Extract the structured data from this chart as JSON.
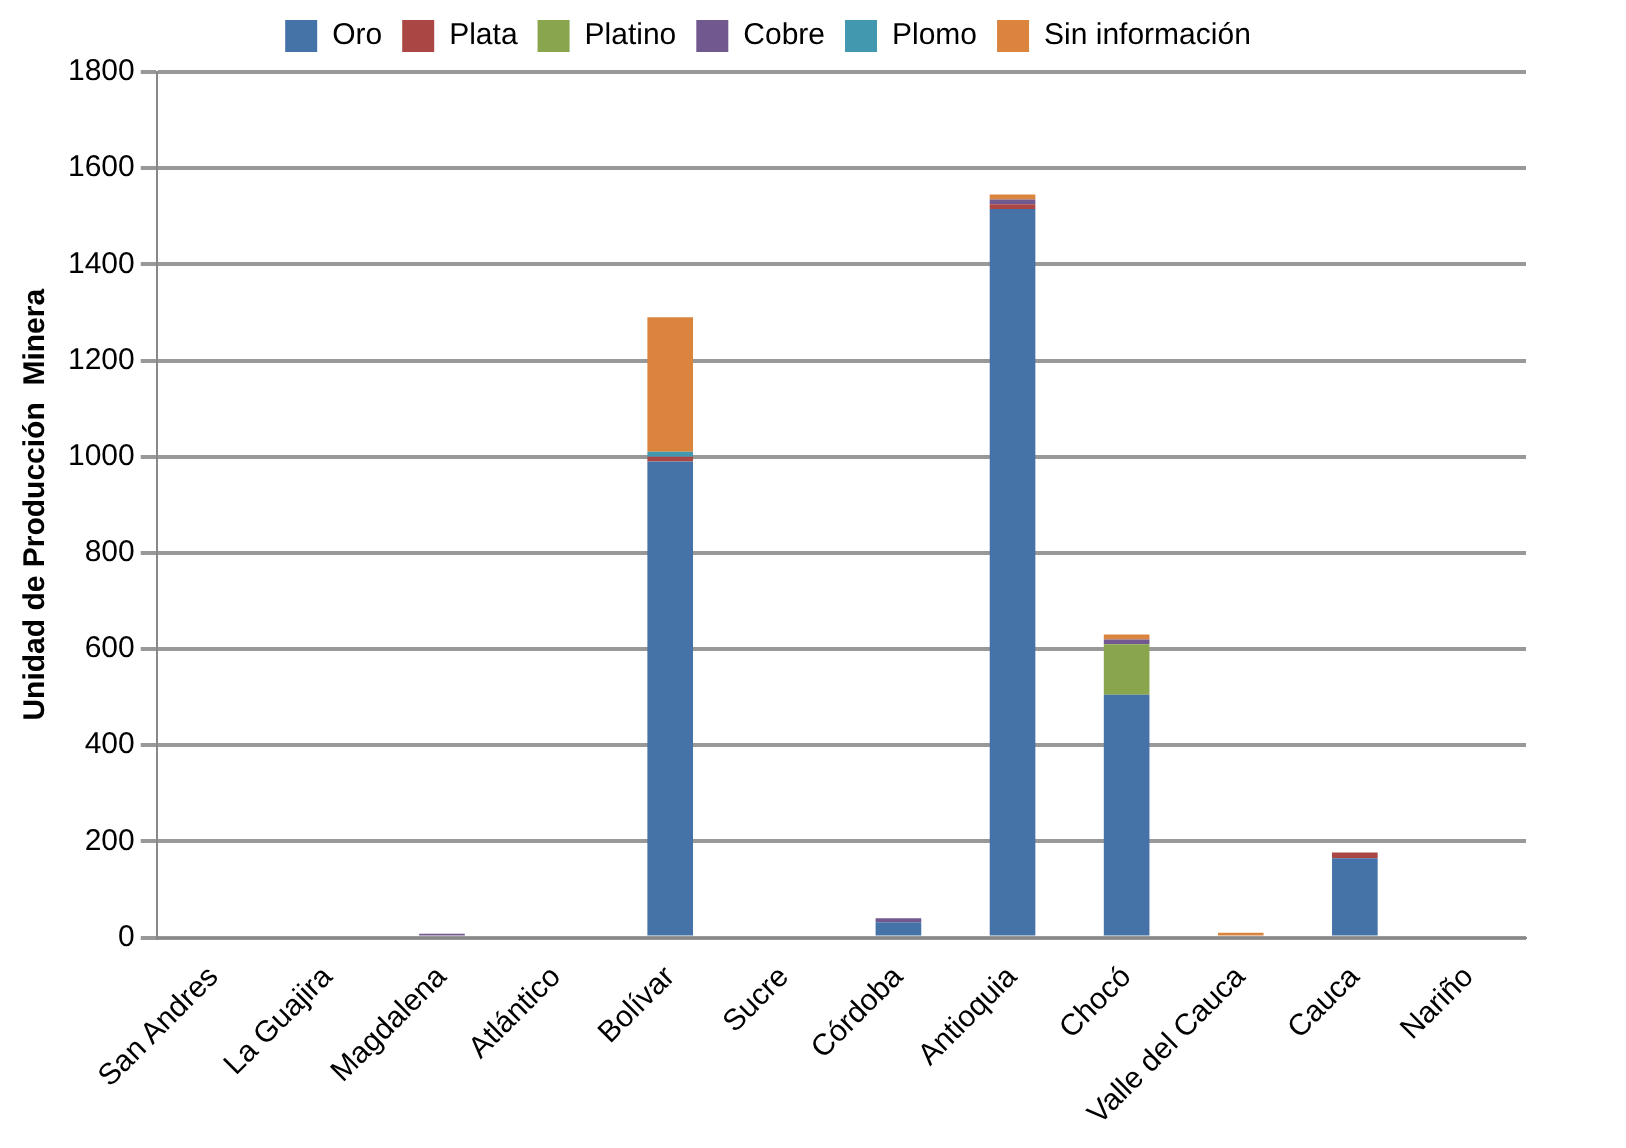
{
  "chart_data": {
    "type": "bar",
    "stacked": true,
    "ylabel": "Unidad de Producción  Minera",
    "categories": [
      "San Andres",
      "La Guajira",
      "Magdalena",
      "Atlántico",
      "Bolívar",
      "Sucre",
      "Córdoba",
      "Antioquia",
      "Chocó",
      "Valle del Cauca",
      "Cauca",
      "Nariño"
    ],
    "series": [
      {
        "name": "Oro",
        "color": "#4572a7",
        "values": [
          0,
          0,
          0,
          0,
          990,
          0,
          32,
          1515,
          505,
          0,
          165,
          0
        ]
      },
      {
        "name": "Plata",
        "color": "#aa4643",
        "values": [
          0,
          0,
          0,
          0,
          10,
          0,
          0,
          10,
          0,
          0,
          12,
          0
        ]
      },
      {
        "name": "Platino",
        "color": "#89a54e",
        "values": [
          0,
          0,
          0,
          0,
          0,
          0,
          0,
          0,
          105,
          0,
          0,
          0
        ]
      },
      {
        "name": "Cobre",
        "color": "#71588f",
        "values": [
          0,
          0,
          8,
          0,
          0,
          0,
          8,
          10,
          10,
          0,
          0,
          0
        ]
      },
      {
        "name": "Plomo",
        "color": "#4198af",
        "values": [
          0,
          0,
          0,
          0,
          10,
          0,
          0,
          0,
          0,
          0,
          0,
          0
        ]
      },
      {
        "name": "Sin información",
        "color": "#db843d",
        "values": [
          0,
          0,
          0,
          0,
          280,
          0,
          0,
          10,
          10,
          10,
          0,
          0
        ]
      }
    ],
    "ylim": [
      0,
      1800
    ],
    "yticks": [
      0,
      200,
      400,
      600,
      800,
      1000,
      1200,
      1400,
      1600,
      1800
    ],
    "grid": "y",
    "legend": "top"
  }
}
